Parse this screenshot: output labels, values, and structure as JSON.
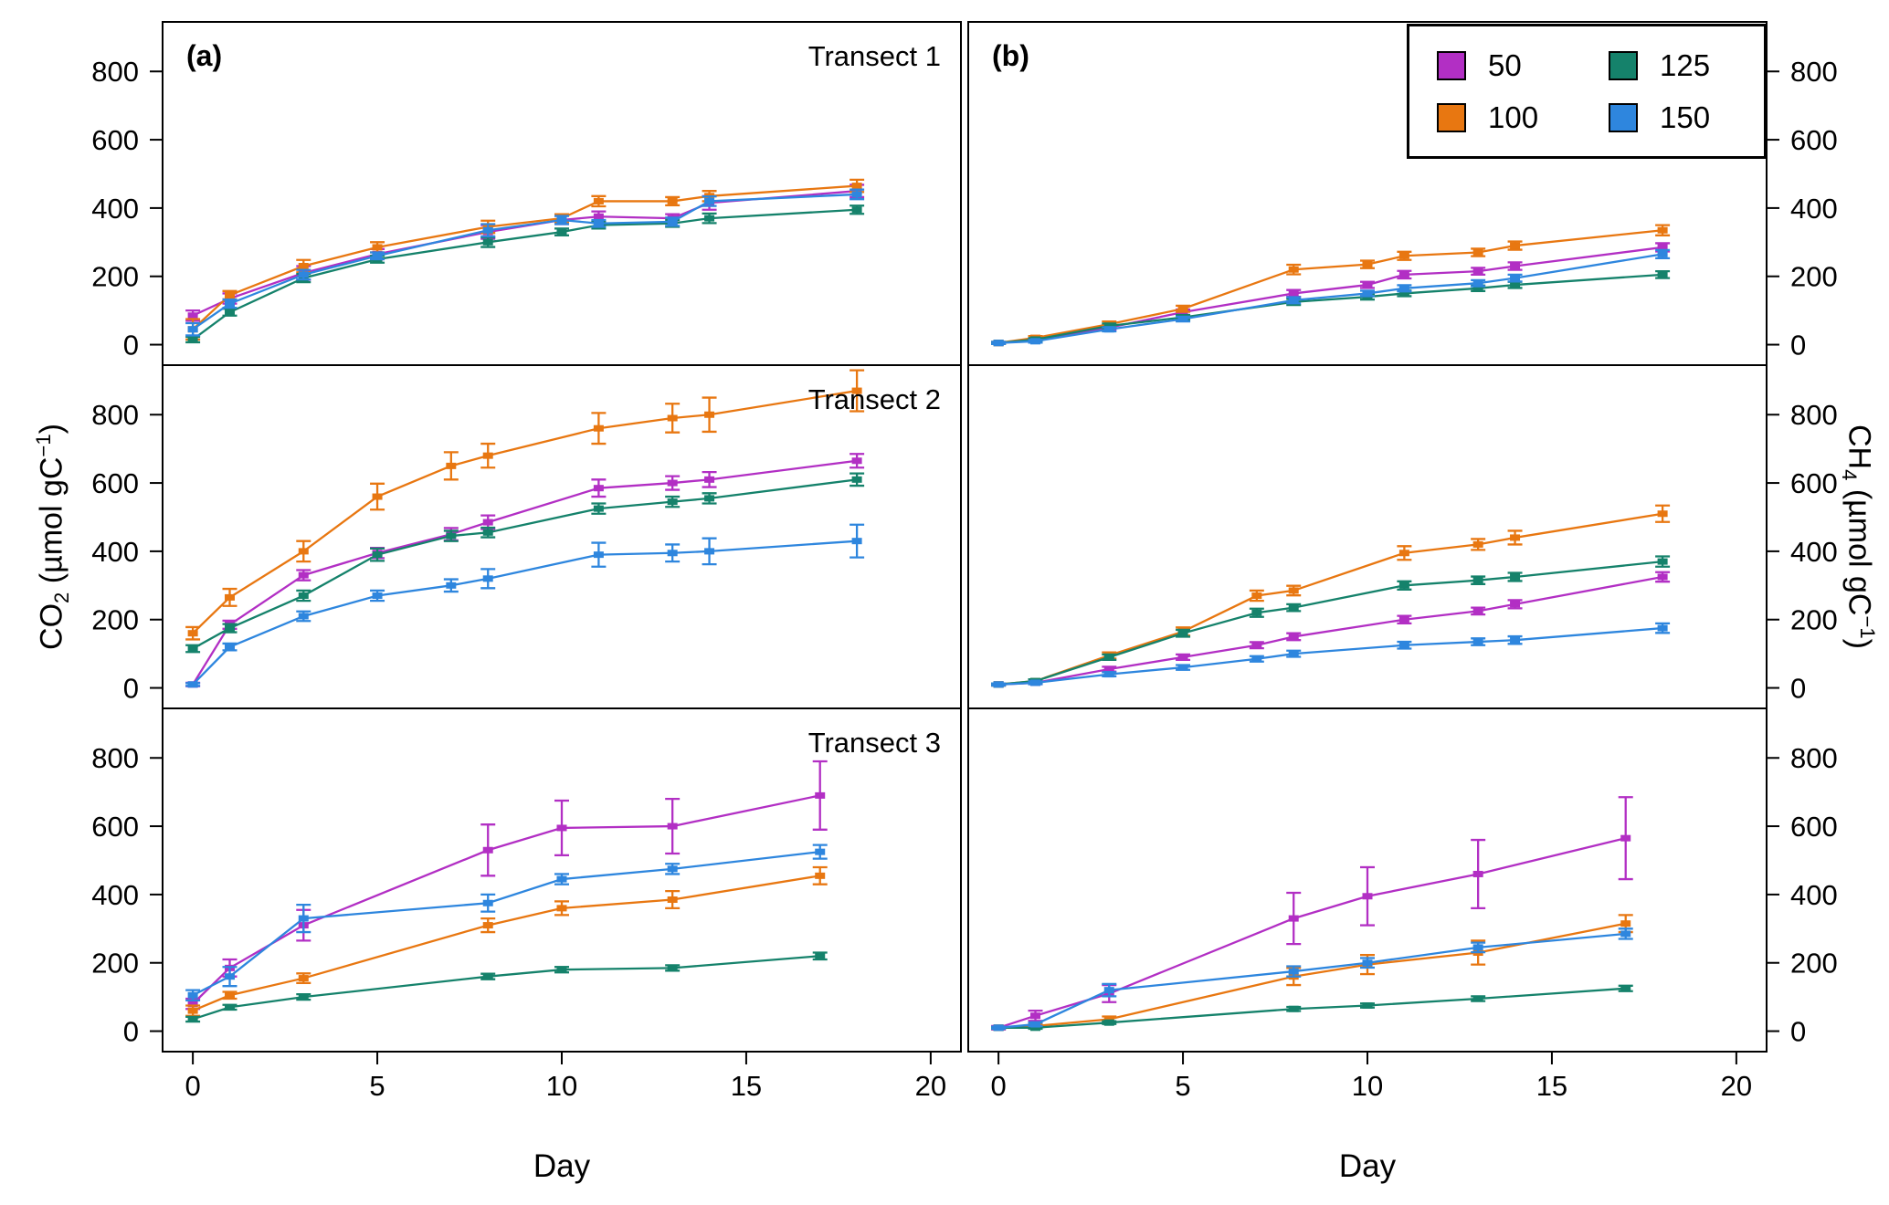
{
  "axes": {
    "xlabel": "Day",
    "x_ticks": [
      0,
      5,
      10,
      15,
      20
    ],
    "y_ticks": [
      0,
      200,
      400,
      600,
      800
    ],
    "xlim": [
      -0.82,
      20.82
    ],
    "ylim": [
      -60,
      945
    ],
    "ylabel_left": {
      "gas": "CO",
      "sub": "2",
      "unit": " (µmol gC",
      "sup": "−1",
      "close": ")"
    },
    "ylabel_right": {
      "gas": "CH",
      "sub": "4",
      "unit": " (µmol gC",
      "sup": "−1",
      "close": ")"
    }
  },
  "legend": {
    "items": [
      {
        "label": "50",
        "color": "#B22FC4"
      },
      {
        "label": "100",
        "color": "#E87711"
      },
      {
        "label": "125",
        "color": "#15826B"
      },
      {
        "label": "150",
        "color": "#2E86DE"
      }
    ]
  },
  "chart_data": [
    {
      "id": "co2-transect1",
      "type": "line",
      "row": 0,
      "col": 0,
      "panel_label": "(a)",
      "annotation": "Transect 1",
      "xlabel": "Day",
      "ylabel": "CO2 (µmol gC-1)",
      "series": [
        {
          "name": "50",
          "color": "#B22FC4",
          "x": [
            0,
            1,
            3,
            5,
            8,
            10,
            11,
            13,
            14,
            18
          ],
          "y": [
            85,
            135,
            210,
            265,
            330,
            365,
            375,
            370,
            415,
            450
          ],
          "err": [
            15,
            15,
            20,
            15,
            20,
            12,
            15,
            12,
            20,
            18
          ]
        },
        {
          "name": "100",
          "color": "#E87711",
          "x": [
            0,
            1,
            3,
            5,
            8,
            10,
            11,
            13,
            14,
            18
          ],
          "y": [
            45,
            145,
            230,
            285,
            345,
            370,
            420,
            420,
            435,
            465
          ],
          "err": [
            30,
            12,
            18,
            15,
            18,
            12,
            15,
            12,
            15,
            18
          ]
        },
        {
          "name": "125",
          "color": "#15826B",
          "x": [
            0,
            1,
            3,
            5,
            8,
            10,
            11,
            13,
            14,
            18
          ],
          "y": [
            15,
            95,
            195,
            250,
            300,
            330,
            350,
            355,
            370,
            395
          ],
          "err": [
            8,
            10,
            12,
            10,
            14,
            10,
            10,
            10,
            14,
            12
          ]
        },
        {
          "name": "150",
          "color": "#2E86DE",
          "x": [
            0,
            1,
            3,
            5,
            8,
            10,
            11,
            13,
            14,
            18
          ],
          "y": [
            45,
            120,
            205,
            260,
            335,
            365,
            355,
            360,
            420,
            440
          ],
          "err": [
            18,
            12,
            14,
            10,
            18,
            12,
            10,
            12,
            14,
            14
          ]
        }
      ]
    },
    {
      "id": "co2-transect2",
      "type": "line",
      "row": 1,
      "col": 0,
      "panel_label": "",
      "annotation": "Transect 2",
      "xlabel": "Day",
      "ylabel": "CO2 (µmol gC-1)",
      "series": [
        {
          "name": "50",
          "color": "#B22FC4",
          "x": [
            0,
            1,
            3,
            5,
            7,
            8,
            11,
            13,
            14,
            18
          ],
          "y": [
            10,
            185,
            330,
            395,
            450,
            485,
            585,
            600,
            610,
            665
          ],
          "err": [
            5,
            12,
            15,
            15,
            18,
            20,
            25,
            20,
            22,
            20
          ]
        },
        {
          "name": "100",
          "color": "#E87711",
          "x": [
            0,
            1,
            3,
            5,
            7,
            8,
            11,
            13,
            14,
            18
          ],
          "y": [
            160,
            265,
            400,
            560,
            650,
            680,
            760,
            790,
            800,
            870
          ],
          "err": [
            18,
            25,
            30,
            38,
            40,
            35,
            45,
            42,
            50,
            60
          ]
        },
        {
          "name": "125",
          "color": "#15826B",
          "x": [
            0,
            1,
            3,
            5,
            7,
            8,
            11,
            13,
            14,
            18
          ],
          "y": [
            115,
            175,
            270,
            390,
            445,
            455,
            525,
            545,
            555,
            610
          ],
          "err": [
            10,
            12,
            15,
            18,
            15,
            14,
            15,
            15,
            15,
            18
          ]
        },
        {
          "name": "150",
          "color": "#2E86DE",
          "x": [
            0,
            1,
            3,
            5,
            7,
            8,
            11,
            13,
            14,
            18
          ],
          "y": [
            10,
            120,
            210,
            270,
            300,
            320,
            390,
            395,
            400,
            430
          ],
          "err": [
            4,
            10,
            14,
            15,
            18,
            28,
            35,
            25,
            38,
            48
          ]
        }
      ]
    },
    {
      "id": "co2-transect3",
      "type": "line",
      "row": 2,
      "col": 0,
      "panel_label": "",
      "annotation": "Transect 3",
      "xlabel": "Day",
      "ylabel": "CO2 (µmol gC-1)",
      "series": [
        {
          "name": "50",
          "color": "#B22FC4",
          "x": [
            0,
            1,
            3,
            8,
            10,
            13,
            17
          ],
          "y": [
            80,
            185,
            310,
            530,
            595,
            600,
            690
          ],
          "err": [
            15,
            25,
            45,
            75,
            80,
            80,
            100
          ]
        },
        {
          "name": "100",
          "color": "#E87711",
          "x": [
            0,
            1,
            3,
            8,
            10,
            13,
            17
          ],
          "y": [
            60,
            105,
            155,
            310,
            360,
            385,
            455
          ],
          "err": [
            15,
            10,
            14,
            20,
            20,
            25,
            25
          ]
        },
        {
          "name": "125",
          "color": "#15826B",
          "x": [
            0,
            1,
            3,
            8,
            10,
            13,
            17
          ],
          "y": [
            35,
            70,
            100,
            160,
            180,
            185,
            220
          ],
          "err": [
            7,
            7,
            8,
            8,
            8,
            8,
            10
          ]
        },
        {
          "name": "150",
          "color": "#2E86DE",
          "x": [
            0,
            1,
            3,
            8,
            10,
            13,
            17
          ],
          "y": [
            105,
            160,
            330,
            375,
            445,
            475,
            525
          ],
          "err": [
            15,
            28,
            40,
            25,
            15,
            15,
            20
          ]
        }
      ]
    },
    {
      "id": "ch4-transect1",
      "type": "line",
      "row": 0,
      "col": 1,
      "panel_label": "(b)",
      "annotation": "",
      "xlabel": "Day",
      "ylabel": "CH4 (µmol gC-1)",
      "series": [
        {
          "name": "50",
          "color": "#B22FC4",
          "x": [
            0,
            1,
            3,
            5,
            8,
            10,
            11,
            13,
            14,
            18
          ],
          "y": [
            5,
            15,
            50,
            95,
            150,
            175,
            205,
            215,
            230,
            285
          ],
          "err": [
            3,
            4,
            7,
            8,
            10,
            9,
            11,
            10,
            11,
            12
          ]
        },
        {
          "name": "100",
          "color": "#E87711",
          "x": [
            0,
            1,
            3,
            5,
            8,
            10,
            11,
            13,
            14,
            18
          ],
          "y": [
            5,
            20,
            60,
            105,
            220,
            235,
            260,
            270,
            290,
            335
          ],
          "err": [
            3,
            5,
            8,
            9,
            14,
            11,
            12,
            11,
            12,
            15
          ]
        },
        {
          "name": "125",
          "color": "#15826B",
          "x": [
            0,
            1,
            3,
            5,
            8,
            10,
            11,
            13,
            14,
            18
          ],
          "y": [
            5,
            15,
            55,
            80,
            125,
            140,
            150,
            165,
            175,
            205
          ],
          "err": [
            3,
            4,
            7,
            7,
            9,
            8,
            8,
            8,
            9,
            10
          ]
        },
        {
          "name": "150",
          "color": "#2E86DE",
          "x": [
            0,
            1,
            3,
            5,
            8,
            10,
            11,
            13,
            14,
            18
          ],
          "y": [
            5,
            10,
            45,
            75,
            130,
            150,
            165,
            180,
            195,
            265
          ],
          "err": [
            3,
            4,
            6,
            7,
            9,
            8,
            9,
            9,
            10,
            12
          ]
        }
      ]
    },
    {
      "id": "ch4-transect2",
      "type": "line",
      "row": 1,
      "col": 1,
      "panel_label": "",
      "annotation": "",
      "xlabel": "Day",
      "ylabel": "CH4 (µmol gC-1)",
      "series": [
        {
          "name": "50",
          "color": "#B22FC4",
          "x": [
            0,
            1,
            3,
            5,
            7,
            8,
            11,
            13,
            14,
            18
          ],
          "y": [
            10,
            15,
            55,
            90,
            125,
            150,
            200,
            225,
            245,
            325
          ],
          "err": [
            3,
            4,
            7,
            8,
            9,
            10,
            11,
            10,
            12,
            14
          ]
        },
        {
          "name": "100",
          "color": "#E87711",
          "x": [
            0,
            1,
            3,
            5,
            7,
            8,
            11,
            13,
            14,
            18
          ],
          "y": [
            10,
            20,
            95,
            165,
            270,
            285,
            395,
            420,
            440,
            510
          ],
          "err": [
            3,
            5,
            9,
            12,
            15,
            14,
            20,
            16,
            20,
            24
          ]
        },
        {
          "name": "125",
          "color": "#15826B",
          "x": [
            0,
            1,
            3,
            5,
            7,
            8,
            11,
            13,
            14,
            18
          ],
          "y": [
            10,
            20,
            90,
            160,
            220,
            235,
            300,
            315,
            325,
            370
          ],
          "err": [
            3,
            5,
            8,
            10,
            12,
            10,
            12,
            11,
            12,
            15
          ]
        },
        {
          "name": "150",
          "color": "#2E86DE",
          "x": [
            0,
            1,
            3,
            5,
            7,
            8,
            11,
            13,
            14,
            18
          ],
          "y": [
            10,
            15,
            40,
            60,
            85,
            100,
            125,
            135,
            140,
            175
          ],
          "err": [
            3,
            4,
            6,
            7,
            8,
            9,
            10,
            10,
            11,
            14
          ]
        }
      ]
    },
    {
      "id": "ch4-transect3",
      "type": "line",
      "row": 2,
      "col": 1,
      "panel_label": "",
      "annotation": "",
      "xlabel": "Day",
      "ylabel": "CH4 (µmol gC-1)",
      "series": [
        {
          "name": "50",
          "color": "#B22FC4",
          "x": [
            0,
            1,
            3,
            8,
            10,
            13,
            17
          ],
          "y": [
            10,
            45,
            110,
            330,
            395,
            460,
            565
          ],
          "err": [
            5,
            15,
            25,
            75,
            85,
            100,
            120
          ]
        },
        {
          "name": "100",
          "color": "#E87711",
          "x": [
            0,
            1,
            3,
            8,
            10,
            13,
            17
          ],
          "y": [
            10,
            15,
            35,
            160,
            195,
            230,
            315
          ],
          "err": [
            3,
            5,
            8,
            25,
            28,
            35,
            25
          ]
        },
        {
          "name": "125",
          "color": "#15826B",
          "x": [
            0,
            1,
            3,
            8,
            10,
            13,
            17
          ],
          "y": [
            10,
            10,
            25,
            65,
            75,
            95,
            125
          ],
          "err": [
            3,
            3,
            4,
            6,
            6,
            7,
            8
          ]
        },
        {
          "name": "150",
          "color": "#2E86DE",
          "x": [
            0,
            1,
            3,
            8,
            10,
            13,
            17
          ],
          "y": [
            10,
            20,
            120,
            175,
            200,
            245,
            285
          ],
          "err": [
            3,
            5,
            18,
            15,
            14,
            14,
            15
          ]
        }
      ]
    }
  ]
}
